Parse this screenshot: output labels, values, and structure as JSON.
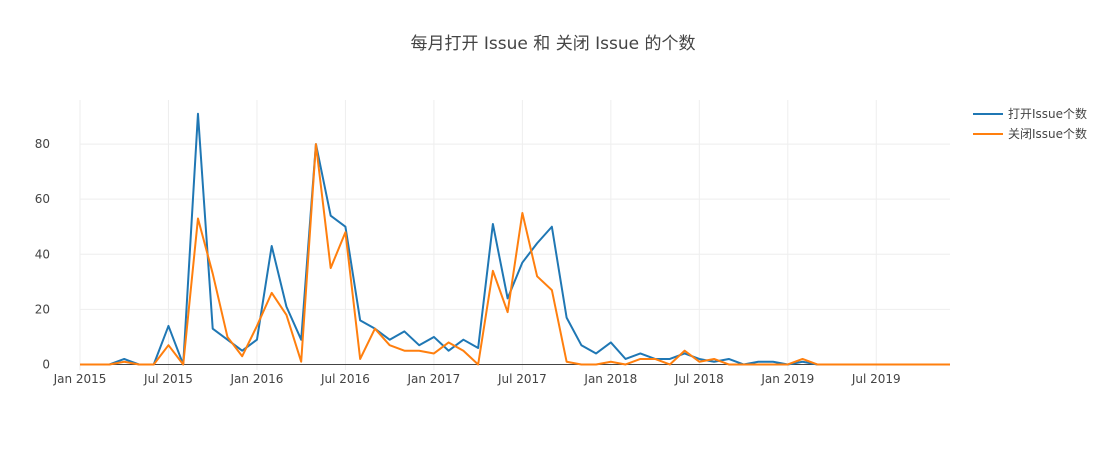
{
  "chart_data": {
    "type": "line",
    "title": "每月打开 Issue 和 关闭 Issue 的个数",
    "xlabel": "",
    "ylabel": "",
    "x_range": [
      "2015-01",
      "2019-12"
    ],
    "ylim": [
      -2,
      96
    ],
    "y_ticks": [
      0,
      20,
      40,
      60,
      80
    ],
    "x_ticks": [
      {
        "date": "2015-01",
        "label": "Jan 2015"
      },
      {
        "date": "2015-07",
        "label": "Jul 2015"
      },
      {
        "date": "2016-01",
        "label": "Jan 2016"
      },
      {
        "date": "2016-07",
        "label": "Jul 2016"
      },
      {
        "date": "2017-01",
        "label": "Jan 2017"
      },
      {
        "date": "2017-07",
        "label": "Jul 2017"
      },
      {
        "date": "2018-01",
        "label": "Jan 2018"
      },
      {
        "date": "2018-07",
        "label": "Jul 2018"
      },
      {
        "date": "2019-01",
        "label": "Jan 2019"
      },
      {
        "date": "2019-07",
        "label": "Jul 2019"
      }
    ],
    "grid": true,
    "legend_position": "top-right",
    "x": [
      "2015-01",
      "2015-02",
      "2015-03",
      "2015-04",
      "2015-05",
      "2015-06",
      "2015-07",
      "2015-08",
      "2015-09",
      "2015-10",
      "2015-11",
      "2015-12",
      "2016-01",
      "2016-02",
      "2016-03",
      "2016-04",
      "2016-05",
      "2016-06",
      "2016-07",
      "2016-08",
      "2016-09",
      "2016-10",
      "2016-11",
      "2016-12",
      "2017-01",
      "2017-02",
      "2017-03",
      "2017-04",
      "2017-05",
      "2017-06",
      "2017-07",
      "2017-08",
      "2017-09",
      "2017-10",
      "2017-11",
      "2017-12",
      "2018-01",
      "2018-02",
      "2018-03",
      "2018-04",
      "2018-05",
      "2018-06",
      "2018-07",
      "2018-08",
      "2018-09",
      "2018-10",
      "2018-11",
      "2018-12",
      "2019-01",
      "2019-02",
      "2019-03",
      "2019-04",
      "2019-05",
      "2019-06",
      "2019-07",
      "2019-08",
      "2019-09",
      "2019-10",
      "2019-11",
      "2019-12"
    ],
    "series": [
      {
        "name": "打开Issue个数",
        "color": "#1f77b4",
        "values": [
          0,
          0,
          0,
          2,
          0,
          0,
          14,
          0,
          91,
          13,
          9,
          5,
          9,
          43,
          21,
          9,
          80,
          54,
          50,
          16,
          13,
          9,
          12,
          7,
          10,
          5,
          9,
          6,
          51,
          24,
          37,
          44,
          50,
          17,
          7,
          4,
          8,
          2,
          4,
          2,
          2,
          4,
          2,
          1,
          2,
          0,
          1,
          1,
          0,
          1,
          0,
          0,
          0,
          0,
          0,
          0,
          0,
          0,
          0,
          0
        ]
      },
      {
        "name": "关闭Issue个数",
        "color": "#ff7f0e",
        "values": [
          0,
          0,
          0,
          1,
          0,
          0,
          7,
          0,
          53,
          33,
          10,
          3,
          14,
          26,
          18,
          1,
          80,
          35,
          48,
          2,
          13,
          7,
          5,
          5,
          4,
          8,
          5,
          0,
          34,
          19,
          55,
          32,
          27,
          1,
          0,
          0,
          1,
          0,
          2,
          2,
          0,
          5,
          1,
          2,
          0,
          0,
          0,
          0,
          0,
          2,
          0,
          0,
          0,
          0,
          0,
          0,
          0,
          0,
          0,
          0
        ]
      }
    ]
  }
}
